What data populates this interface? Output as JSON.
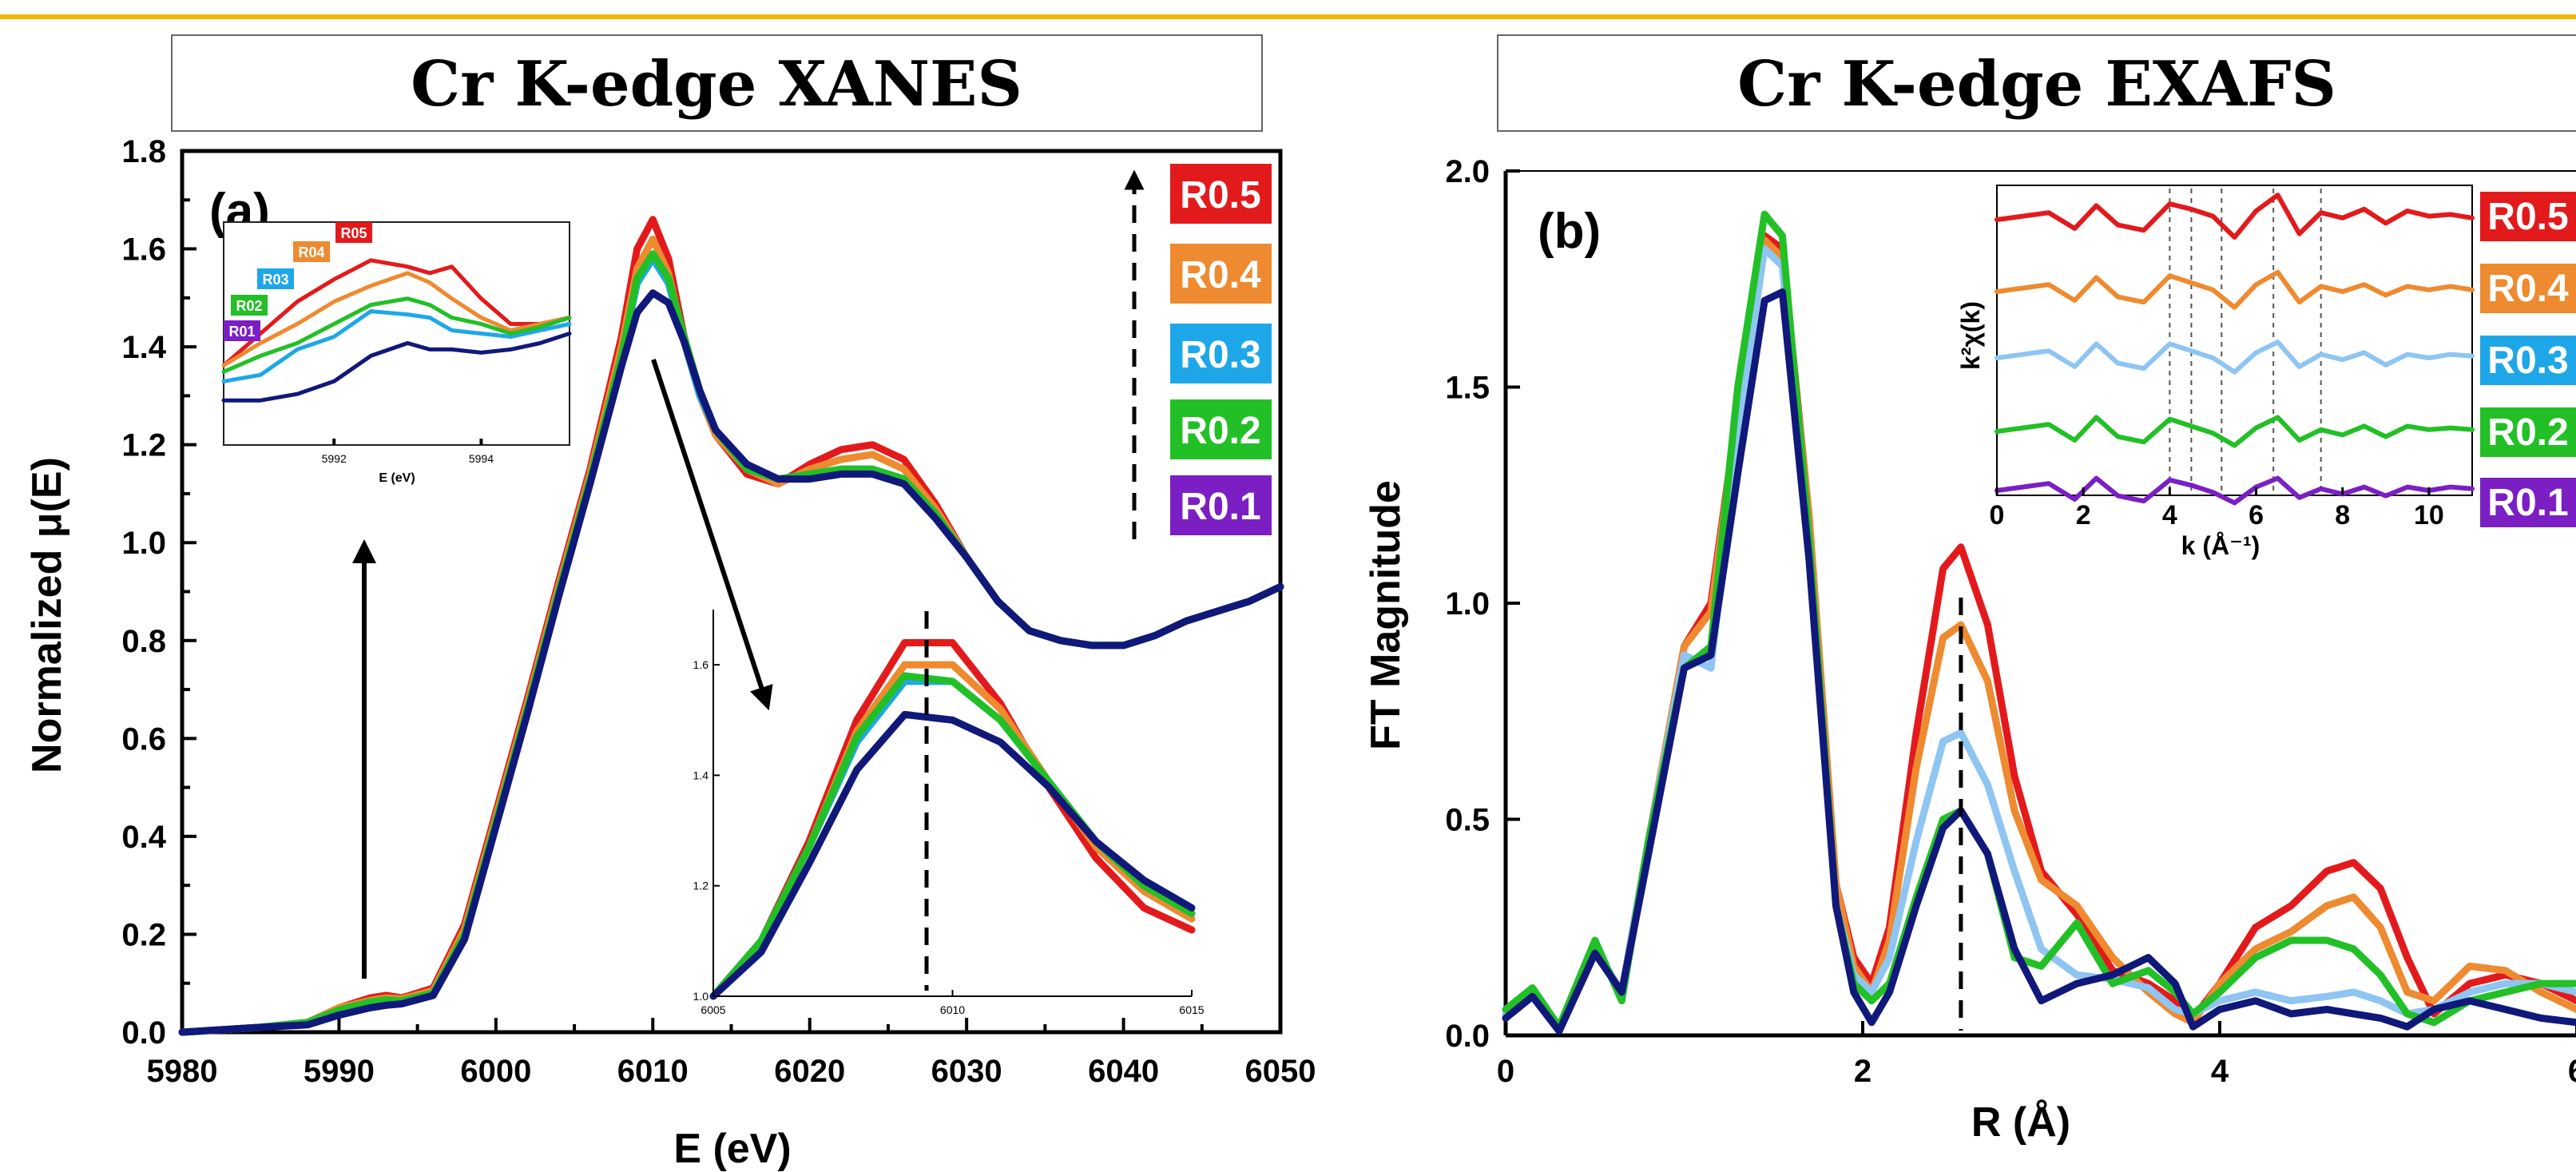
{
  "colors": {
    "top_rule": "#f2b705",
    "R0.5": "#e31a1c",
    "R0.4": "#ee8a2f",
    "R0.3": "#1ea7e8",
    "R0.3_b": "#8ec5f2",
    "R0.2": "#22c026",
    "R0.1": "#7b1fc4",
    "R0.1_curve": "#10187a"
  },
  "chart_data": [
    {
      "type": "line",
      "panel": "(a)",
      "title": "Cr K-edge XANES",
      "xlabel": "E (eV)",
      "ylabel": "Normalized μ(E)",
      "xlim": [
        5980,
        6050
      ],
      "ylim": [
        0.0,
        1.8
      ],
      "xticks": [
        "5980",
        "5990",
        "6000",
        "6010",
        "6020",
        "6030",
        "6040",
        "6050"
      ],
      "yticks": [
        "0.0",
        "0.2",
        "0.4",
        "0.6",
        "0.8",
        "1.0",
        "1.2",
        "1.4",
        "1.6",
        "1.8"
      ],
      "legend": [
        "R0.5",
        "R0.4",
        "R0.3",
        "R0.2",
        "R0.1"
      ],
      "legend_position": "top-right",
      "x": [
        5980,
        5985,
        5988,
        5990,
        5992,
        5993,
        5994,
        5996,
        5998,
        6000,
        6002,
        6004,
        6006,
        6008,
        6009,
        6010,
        6011,
        6012,
        6013,
        6014,
        6016,
        6018,
        6020,
        6022,
        6024,
        6026,
        6028,
        6030,
        6032,
        6034,
        6036,
        6038,
        6040,
        6042,
        6044,
        6046,
        6048,
        6050
      ],
      "series": [
        {
          "name": "R0.5",
          "values": [
            0.0,
            0.01,
            0.02,
            0.05,
            0.07,
            0.075,
            0.07,
            0.09,
            0.22,
            0.45,
            0.68,
            0.92,
            1.15,
            1.42,
            1.6,
            1.66,
            1.58,
            1.42,
            1.3,
            1.22,
            1.14,
            1.12,
            1.16,
            1.19,
            1.2,
            1.17,
            1.08,
            0.97,
            0.88,
            0.82,
            0.8,
            0.79,
            0.79,
            0.81,
            0.84,
            0.86,
            0.88,
            0.91
          ]
        },
        {
          "name": "R0.4",
          "values": [
            0.0,
            0.01,
            0.02,
            0.05,
            0.065,
            0.07,
            0.068,
            0.085,
            0.21,
            0.44,
            0.67,
            0.91,
            1.14,
            1.4,
            1.56,
            1.62,
            1.55,
            1.41,
            1.3,
            1.22,
            1.15,
            1.12,
            1.15,
            1.17,
            1.18,
            1.15,
            1.07,
            0.97,
            0.88,
            0.82,
            0.8,
            0.79,
            0.79,
            0.81,
            0.84,
            0.86,
            0.88,
            0.91
          ]
        },
        {
          "name": "R0.3",
          "values": [
            0.0,
            0.01,
            0.02,
            0.045,
            0.06,
            0.065,
            0.063,
            0.08,
            0.2,
            0.43,
            0.66,
            0.9,
            1.13,
            1.38,
            1.53,
            1.58,
            1.53,
            1.41,
            1.3,
            1.23,
            1.15,
            1.13,
            1.14,
            1.15,
            1.15,
            1.13,
            1.06,
            0.97,
            0.88,
            0.82,
            0.8,
            0.79,
            0.79,
            0.81,
            0.84,
            0.86,
            0.88,
            0.91
          ]
        },
        {
          "name": "R0.2",
          "values": [
            0.0,
            0.01,
            0.02,
            0.045,
            0.062,
            0.066,
            0.064,
            0.08,
            0.2,
            0.43,
            0.66,
            0.9,
            1.13,
            1.38,
            1.54,
            1.59,
            1.54,
            1.42,
            1.31,
            1.23,
            1.15,
            1.13,
            1.14,
            1.15,
            1.15,
            1.13,
            1.06,
            0.97,
            0.88,
            0.82,
            0.8,
            0.79,
            0.79,
            0.81,
            0.84,
            0.86,
            0.88,
            0.91
          ]
        },
        {
          "name": "R0.1",
          "values": [
            0.0,
            0.01,
            0.015,
            0.035,
            0.05,
            0.055,
            0.058,
            0.075,
            0.19,
            0.42,
            0.65,
            0.89,
            1.12,
            1.36,
            1.47,
            1.51,
            1.49,
            1.41,
            1.31,
            1.23,
            1.16,
            1.13,
            1.13,
            1.14,
            1.14,
            1.12,
            1.05,
            0.97,
            0.88,
            0.82,
            0.8,
            0.79,
            0.79,
            0.81,
            0.84,
            0.86,
            0.88,
            0.91
          ]
        }
      ],
      "annotations": {
        "arrow_up_pre_edge": "increasing R",
        "arrow_down_white_line": "decreasing white line"
      },
      "insets": [
        {
          "position": "top-left",
          "xlabel": "E (eV)",
          "xticks": [
            "5992",
            "5994"
          ],
          "xlim": [
            5990.5,
            5995.2
          ],
          "ylim": [
            0.02,
            0.09
          ],
          "labels": [
            "R05",
            "R04",
            "R03",
            "R02",
            "R01"
          ],
          "x": [
            5990.5,
            5991.0,
            5991.5,
            5992.0,
            5992.5,
            5993.0,
            5993.3,
            5993.6,
            5994.0,
            5994.4,
            5994.8,
            5995.2
          ],
          "series": [
            {
              "name": "R05",
              "values": [
                0.045,
                0.055,
                0.065,
                0.072,
                0.078,
                0.076,
                0.074,
                0.076,
                0.066,
                0.058,
                0.058,
                0.06
              ]
            },
            {
              "name": "R04",
              "values": [
                0.045,
                0.052,
                0.058,
                0.065,
                0.07,
                0.074,
                0.071,
                0.066,
                0.06,
                0.056,
                0.058,
                0.06
              ]
            },
            {
              "name": "R03",
              "values": [
                0.04,
                0.042,
                0.05,
                0.054,
                0.062,
                0.061,
                0.06,
                0.056,
                0.055,
                0.054,
                0.056,
                0.058
              ]
            },
            {
              "name": "R02",
              "values": [
                0.043,
                0.048,
                0.052,
                0.058,
                0.064,
                0.066,
                0.064,
                0.06,
                0.058,
                0.055,
                0.057,
                0.06
              ]
            },
            {
              "name": "R01",
              "values": [
                0.034,
                0.034,
                0.036,
                0.04,
                0.048,
                0.052,
                0.05,
                0.05,
                0.049,
                0.05,
                0.052,
                0.055
              ]
            }
          ]
        },
        {
          "position": "center-right",
          "xticks": [
            "6005",
            "6010",
            "6015"
          ],
          "yticks": [
            "1.0",
            "1.2",
            "1.4",
            "1.6"
          ],
          "xlim": [
            6005,
            6015
          ],
          "ylim": [
            1.0,
            1.7
          ],
          "x": [
            6005,
            6006,
            6007,
            6008,
            6009,
            6010,
            6011,
            6012,
            6013,
            6014,
            6015
          ],
          "series": [
            {
              "name": "R0.5",
              "values": [
                1.0,
                1.1,
                1.28,
                1.5,
                1.64,
                1.64,
                1.53,
                1.38,
                1.25,
                1.16,
                1.12
              ]
            },
            {
              "name": "R0.4",
              "values": [
                1.0,
                1.1,
                1.27,
                1.48,
                1.6,
                1.6,
                1.52,
                1.39,
                1.27,
                1.19,
                1.14
              ]
            },
            {
              "name": "R0.3",
              "values": [
                1.0,
                1.1,
                1.27,
                1.46,
                1.57,
                1.57,
                1.5,
                1.39,
                1.28,
                1.2,
                1.15
              ]
            },
            {
              "name": "R0.2",
              "values": [
                1.0,
                1.1,
                1.27,
                1.47,
                1.58,
                1.57,
                1.5,
                1.39,
                1.28,
                1.2,
                1.15
              ]
            },
            {
              "name": "R0.1",
              "values": [
                1.0,
                1.08,
                1.24,
                1.41,
                1.51,
                1.5,
                1.46,
                1.38,
                1.28,
                1.21,
                1.16
              ]
            }
          ]
        }
      ]
    },
    {
      "type": "line",
      "panel": "(b)",
      "title": "Cr K-edge EXAFS",
      "xlabel": "R (Å)",
      "ylabel": "FT Magnitude",
      "xlim": [
        0,
        6
      ],
      "ylim": [
        0.0,
        2.0
      ],
      "xticks": [
        "0",
        "2",
        "4",
        "6"
      ],
      "yticks": [
        "0.0",
        "0.5",
        "1.0",
        "1.5",
        "2.0"
      ],
      "legend": [
        "R0.5",
        "R0.4",
        "R0.3",
        "R0.2",
        "R0.1"
      ],
      "legend_position": "top-right",
      "x": [
        0.0,
        0.15,
        0.3,
        0.5,
        0.65,
        0.8,
        1.0,
        1.15,
        1.3,
        1.45,
        1.55,
        1.7,
        1.85,
        1.95,
        2.05,
        2.15,
        2.3,
        2.45,
        2.55,
        2.7,
        2.85,
        3.0,
        3.2,
        3.4,
        3.6,
        3.75,
        3.85,
        4.0,
        4.2,
        4.4,
        4.6,
        4.75,
        4.9,
        5.05,
        5.2,
        5.4,
        5.6,
        5.8,
        6.0
      ],
      "series": [
        {
          "name": "R0.5",
          "values": [
            0.04,
            0.1,
            0.02,
            0.2,
            0.1,
            0.45,
            0.9,
            1.0,
            1.45,
            1.85,
            1.82,
            1.2,
            0.35,
            0.18,
            0.12,
            0.25,
            0.7,
            1.08,
            1.13,
            0.95,
            0.6,
            0.38,
            0.28,
            0.15,
            0.12,
            0.08,
            0.04,
            0.12,
            0.25,
            0.3,
            0.38,
            0.4,
            0.34,
            0.18,
            0.05,
            0.12,
            0.14,
            0.12,
            0.08
          ]
        },
        {
          "name": "R0.4",
          "values": [
            0.04,
            0.1,
            0.02,
            0.2,
            0.1,
            0.45,
            0.9,
            0.98,
            1.45,
            1.84,
            1.8,
            1.2,
            0.35,
            0.16,
            0.1,
            0.22,
            0.62,
            0.92,
            0.95,
            0.82,
            0.52,
            0.36,
            0.3,
            0.18,
            0.1,
            0.05,
            0.03,
            0.12,
            0.2,
            0.24,
            0.3,
            0.32,
            0.25,
            0.1,
            0.08,
            0.16,
            0.15,
            0.1,
            0.06
          ]
        },
        {
          "name": "R0.3",
          "values": [
            0.05,
            0.1,
            0.02,
            0.2,
            0.1,
            0.45,
            0.88,
            0.85,
            1.4,
            1.82,
            1.78,
            1.15,
            0.3,
            0.14,
            0.1,
            0.18,
            0.45,
            0.68,
            0.7,
            0.58,
            0.38,
            0.2,
            0.14,
            0.13,
            0.11,
            0.06,
            0.05,
            0.08,
            0.1,
            0.08,
            0.09,
            0.1,
            0.08,
            0.05,
            0.06,
            0.1,
            0.12,
            0.12,
            0.1
          ]
        },
        {
          "name": "R0.2",
          "values": [
            0.06,
            0.11,
            0.02,
            0.22,
            0.08,
            0.45,
            0.85,
            0.9,
            1.5,
            1.9,
            1.85,
            1.15,
            0.3,
            0.12,
            0.08,
            0.12,
            0.32,
            0.5,
            0.52,
            0.42,
            0.18,
            0.16,
            0.26,
            0.12,
            0.15,
            0.1,
            0.05,
            0.1,
            0.18,
            0.22,
            0.22,
            0.2,
            0.14,
            0.05,
            0.03,
            0.08,
            0.1,
            0.12,
            0.12
          ]
        },
        {
          "name": "R0.1",
          "values": [
            0.04,
            0.09,
            0.01,
            0.19,
            0.1,
            0.42,
            0.85,
            0.88,
            1.3,
            1.7,
            1.72,
            1.1,
            0.3,
            0.1,
            0.03,
            0.1,
            0.3,
            0.48,
            0.52,
            0.42,
            0.2,
            0.08,
            0.12,
            0.14,
            0.18,
            0.12,
            0.02,
            0.06,
            0.08,
            0.05,
            0.06,
            0.05,
            0.04,
            0.02,
            0.06,
            0.08,
            0.06,
            0.04,
            0.03
          ]
        }
      ],
      "annotations": {
        "dashed_marker_R": 2.55
      },
      "insets": [
        {
          "position": "top-right",
          "xlabel": "k (Å⁻¹)",
          "ylabel": "k²χ(k)",
          "xticks": [
            "0",
            "2",
            "4",
            "6",
            "8",
            "10"
          ],
          "xlim": [
            0,
            11
          ],
          "dashed_k": [
            4.0,
            4.5,
            5.2,
            6.4,
            7.5
          ],
          "x": [
            0,
            0.6,
            1.2,
            1.8,
            2.3,
            2.8,
            3.4,
            4.0,
            4.5,
            5.0,
            5.5,
            6.0,
            6.5,
            7.0,
            7.5,
            8.0,
            8.5,
            9.0,
            9.5,
            10.0,
            10.5,
            11.0
          ],
          "series": [
            {
              "name": "R0.5",
              "values": [
                0.0,
                0.2,
                0.4,
                -0.5,
                0.8,
                -0.3,
                -0.6,
                0.9,
                0.6,
                0.2,
                -1.0,
                0.5,
                1.4,
                -0.8,
                0.4,
                0.1,
                0.6,
                -0.2,
                0.5,
                0.2,
                0.3,
                0.1
              ]
            },
            {
              "name": "R0.4",
              "values": [
                0.0,
                0.2,
                0.4,
                -0.5,
                0.8,
                -0.3,
                -0.6,
                0.9,
                0.5,
                0.1,
                -0.9,
                0.4,
                1.1,
                -0.6,
                0.3,
                0.0,
                0.4,
                -0.2,
                0.3,
                0.1,
                0.3,
                0.1
              ]
            },
            {
              "name": "R0.3",
              "values": [
                0.0,
                0.2,
                0.4,
                -0.5,
                0.8,
                -0.3,
                -0.6,
                0.8,
                0.4,
                0.0,
                -0.8,
                0.3,
                0.9,
                -0.5,
                0.2,
                -0.1,
                0.3,
                -0.4,
                0.2,
                0.0,
                0.2,
                0.1
              ]
            },
            {
              "name": "R0.2",
              "values": [
                0.0,
                0.2,
                0.4,
                -0.5,
                0.8,
                -0.3,
                -0.6,
                0.7,
                0.3,
                -0.1,
                -0.8,
                0.2,
                0.8,
                -0.5,
                0.1,
                -0.2,
                0.3,
                -0.3,
                0.3,
                0.1,
                0.2,
                0.1
              ]
            },
            {
              "name": "R0.1",
              "values": [
                0.0,
                0.2,
                0.4,
                -0.5,
                0.7,
                -0.3,
                -0.6,
                0.6,
                0.3,
                -0.1,
                -0.7,
                0.2,
                0.7,
                -0.4,
                0.1,
                -0.2,
                0.2,
                -0.3,
                0.2,
                0.0,
                0.2,
                0.1
              ]
            }
          ]
        }
      ]
    }
  ]
}
